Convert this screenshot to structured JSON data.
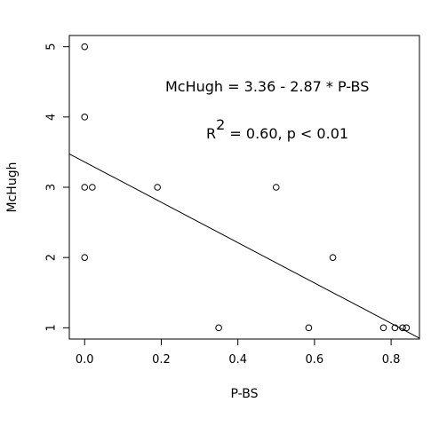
{
  "chart_data": {
    "type": "scatter",
    "xlabel": "P-BS",
    "ylabel": "McHugh",
    "xlim": [
      -0.04,
      0.874
    ],
    "ylim": [
      0.84,
      5.16
    ],
    "x_ticks": [
      "0.0",
      "0.2",
      "0.4",
      "0.6",
      "0.8"
    ],
    "x_tick_values": [
      0.0,
      0.2,
      0.4,
      0.6,
      0.8
    ],
    "y_ticks": [
      "1",
      "2",
      "3",
      "4",
      "5"
    ],
    "y_tick_values": [
      1,
      2,
      3,
      4,
      5
    ],
    "points": [
      {
        "x": 0.0,
        "y": 5
      },
      {
        "x": 0.0,
        "y": 4
      },
      {
        "x": 0.0,
        "y": 3
      },
      {
        "x": 0.02,
        "y": 3
      },
      {
        "x": 0.0,
        "y": 2
      },
      {
        "x": 0.19,
        "y": 3
      },
      {
        "x": 0.5,
        "y": 3
      },
      {
        "x": 0.35,
        "y": 1
      },
      {
        "x": 0.585,
        "y": 1
      },
      {
        "x": 0.648,
        "y": 2
      },
      {
        "x": 0.78,
        "y": 1
      },
      {
        "x": 0.81,
        "y": 1
      },
      {
        "x": 0.83,
        "y": 1
      },
      {
        "x": 0.84,
        "y": 1
      }
    ],
    "regression": {
      "intercept": 3.36,
      "slope": -2.87
    },
    "annotations": {
      "equation": "McHugh = 3.36 - 2.87 * P-BS",
      "r_label": "R",
      "r_superscript": "2",
      "r_stats": " = 0.60,  p < 0.01"
    },
    "grid": false,
    "legend": "none"
  }
}
